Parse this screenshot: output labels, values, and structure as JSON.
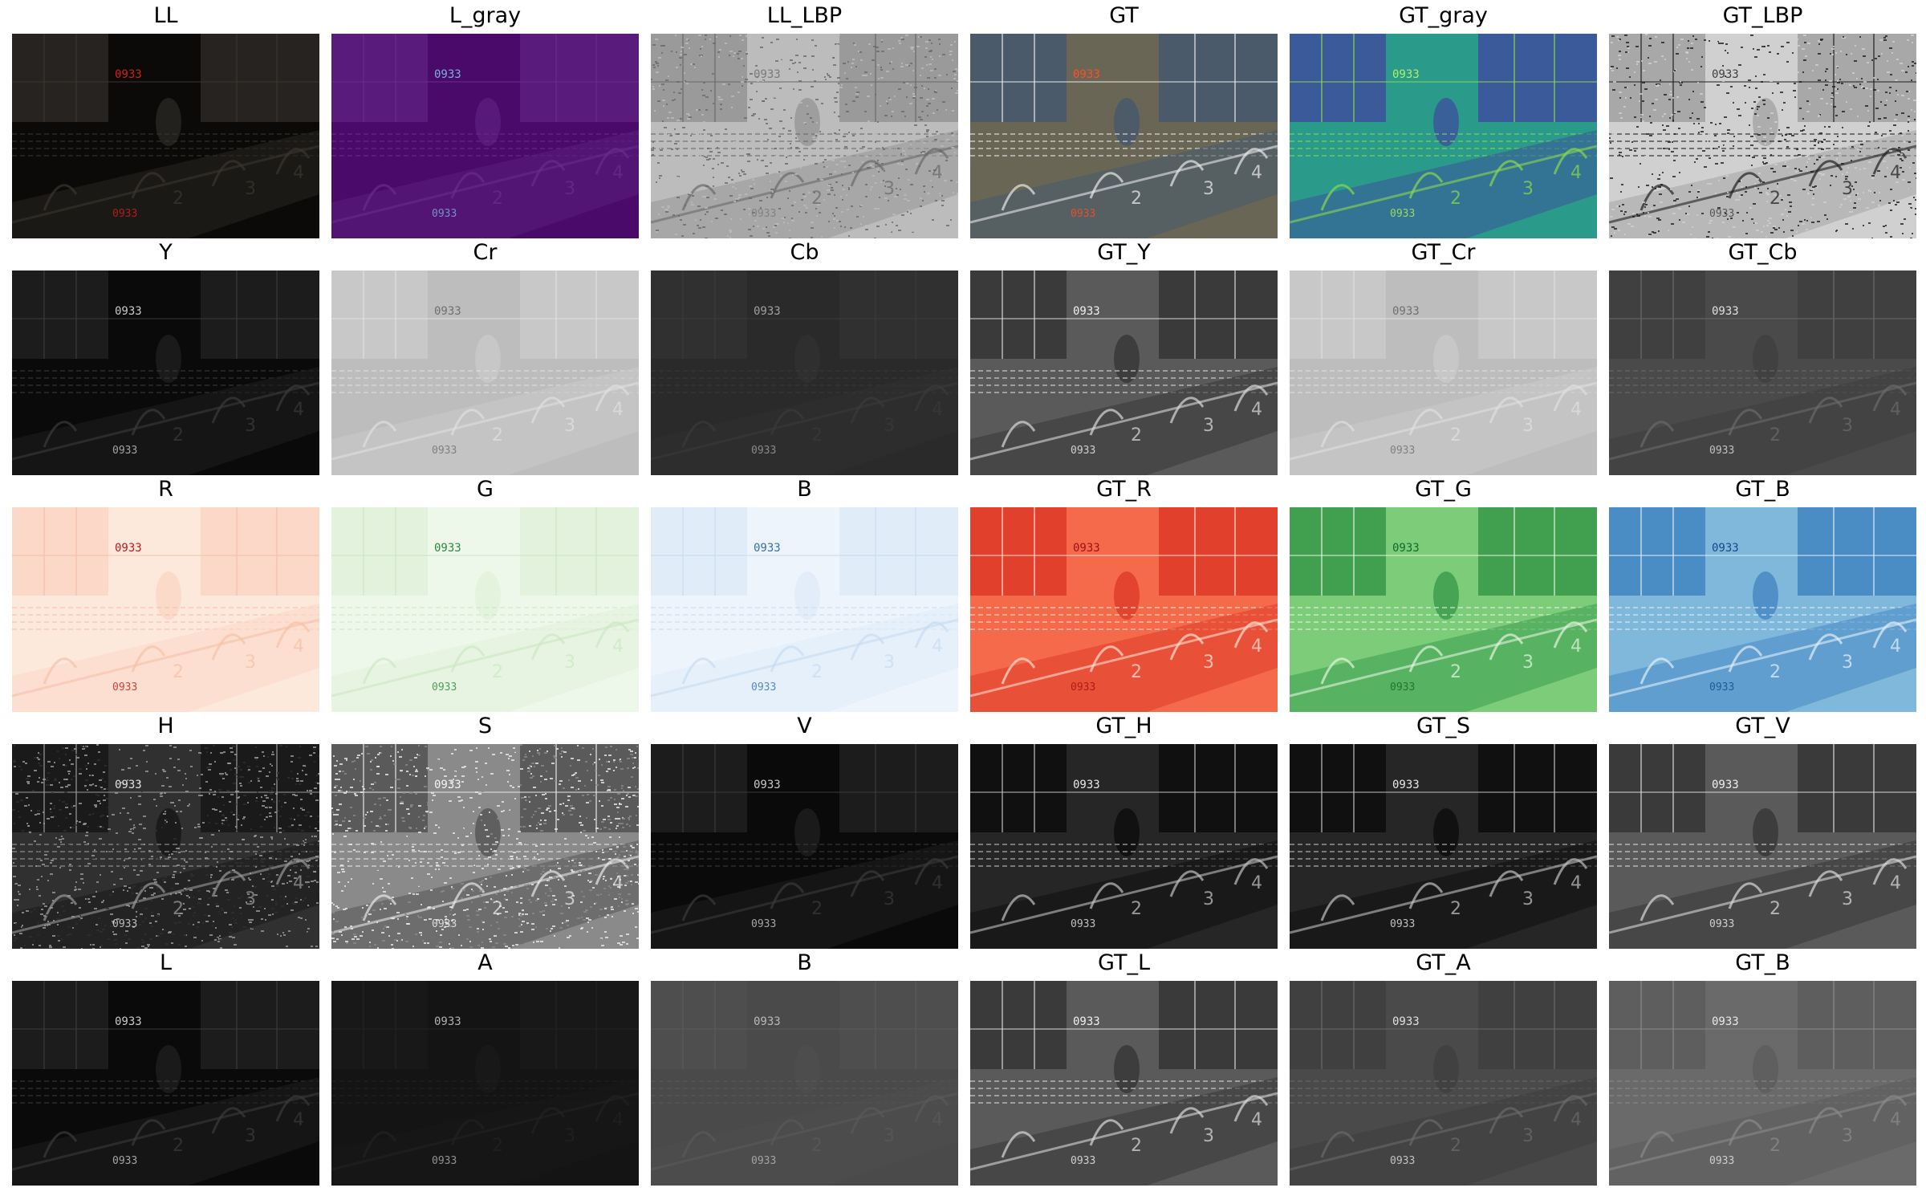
{
  "panels": [
    {
      "title": "LL",
      "style": "dark_color"
    },
    {
      "title": "L_gray",
      "style": "purple"
    },
    {
      "title": "LL_LBP",
      "style": "lbp_light"
    },
    {
      "title": "GT",
      "style": "gt_color"
    },
    {
      "title": "GT_gray",
      "style": "viridis"
    },
    {
      "title": "GT_LBP",
      "style": "lbp_edges"
    },
    {
      "title": "Y",
      "style": "dark_gray"
    },
    {
      "title": "Cr",
      "style": "light_gray"
    },
    {
      "title": "Cb",
      "style": "mid_dark_gray"
    },
    {
      "title": "GT_Y",
      "style": "gray_scene"
    },
    {
      "title": "GT_Cr",
      "style": "light_gray"
    },
    {
      "title": "GT_Cb",
      "style": "mid_gray"
    },
    {
      "title": "R",
      "style": "reds_light"
    },
    {
      "title": "G",
      "style": "greens_light"
    },
    {
      "title": "B",
      "style": "blues_light"
    },
    {
      "title": "GT_R",
      "style": "reds"
    },
    {
      "title": "GT_G",
      "style": "greens"
    },
    {
      "title": "GT_B",
      "style": "blues"
    },
    {
      "title": "H",
      "style": "noise_dark"
    },
    {
      "title": "S",
      "style": "noise_light"
    },
    {
      "title": "V",
      "style": "dark_gray"
    },
    {
      "title": "GT_H",
      "style": "gray_scene_dark"
    },
    {
      "title": "GT_S",
      "style": "gray_scene_dark"
    },
    {
      "title": "GT_V",
      "style": "gray_scene"
    },
    {
      "title": "L",
      "style": "dark_gray"
    },
    {
      "title": "A",
      "style": "dark_flat"
    },
    {
      "title": "B",
      "style": "mid_flat"
    },
    {
      "title": "GT_L",
      "style": "gray_scene"
    },
    {
      "title": "GT_A",
      "style": "mid_gray"
    },
    {
      "title": "GT_B",
      "style": "mid_gray_light"
    }
  ],
  "overlay": {
    "clock_text": "0933",
    "numbers": [
      "2",
      "3",
      "4"
    ]
  },
  "palettes": {
    "dark_color": {
      "bg": "#0c0a08",
      "fg": "#262320",
      "line": "#3a3530",
      "text": "#d02020"
    },
    "purple": {
      "bg": "#4a0a6a",
      "fg": "#5a1c7c",
      "line": "#6a2c8a",
      "text": "#7ab0d8"
    },
    "lbp_light": {
      "bg": "#bcbcbc",
      "fg": "#9a9a9a",
      "line": "#6a6a6a",
      "text": "#7a7a7a"
    },
    "gt_color": {
      "bg": "#6a6656",
      "fg": "#4a5a6a",
      "line": "#e8e8e8",
      "text": "#ff5020"
    },
    "viridis": {
      "bg": "#2a9a8a",
      "fg": "#3a5a9a",
      "line": "#8ad850",
      "text": "#b0f060"
    },
    "lbp_edges": {
      "bg": "#d0d0d0",
      "fg": "#a8a8a8",
      "line": "#202020",
      "text": "#404040"
    },
    "dark_gray": {
      "bg": "#0a0a0a",
      "fg": "#1c1c1c",
      "line": "#3a3a3a",
      "text": "#c8c8c8"
    },
    "light_gray": {
      "bg": "#bdbdbd",
      "fg": "#c8c8c8",
      "line": "#e0e0e0",
      "text": "#707070"
    },
    "mid_dark_gray": {
      "bg": "#2a2a2a",
      "fg": "#303030",
      "line": "#3a3a3a",
      "text": "#a0a0a0"
    },
    "gray_scene": {
      "bg": "#5a5a5a",
      "fg": "#3a3a3a",
      "line": "#d8d8d8",
      "text": "#f0f0f0"
    },
    "gray_scene_dark": {
      "bg": "#262626",
      "fg": "#101010",
      "line": "#c0c0c0",
      "text": "#e8e8e8"
    },
    "mid_gray": {
      "bg": "#4a4a4a",
      "fg": "#404040",
      "line": "#6a6a6a",
      "text": "#e0e0e0"
    },
    "reds_light": {
      "bg": "#fde8dc",
      "fg": "#fcd8c8",
      "line": "#f6c0a8",
      "text": "#c01818"
    },
    "greens_light": {
      "bg": "#eef8ea",
      "fg": "#e2f2dc",
      "line": "#cce8c4",
      "text": "#2a8a3a"
    },
    "blues_light": {
      "bg": "#eef4fc",
      "fg": "#e0ecf8",
      "line": "#c8dcf0",
      "text": "#3070b0"
    },
    "reds": {
      "bg": "#f66a4c",
      "fg": "#e0402c",
      "line": "#fde0d2",
      "text": "#a01010"
    },
    "greens": {
      "bg": "#7ccc7a",
      "fg": "#40a050",
      "line": "#e4f4de",
      "text": "#106a2a"
    },
    "blues": {
      "bg": "#80b8dc",
      "fg": "#4a8cc4",
      "line": "#e2eef8",
      "text": "#104a8a"
    },
    "noise_dark": {
      "bg": "#303030",
      "fg": "#1a1a1a",
      "line": "#9a9a9a",
      "text": "#e0e0e0"
    },
    "noise_light": {
      "bg": "#8a8a8a",
      "fg": "#5a5a5a",
      "line": "#e8e8e8",
      "text": "#f4f4f4"
    },
    "dark_flat": {
      "bg": "#141414",
      "fg": "#181818",
      "line": "#222222",
      "text": "#b0b0b0"
    },
    "mid_flat": {
      "bg": "#4a4a4a",
      "fg": "#4e4e4e",
      "line": "#5a5a5a",
      "text": "#b8b8b8"
    },
    "mid_gray_light": {
      "bg": "#6a6a6a",
      "fg": "#5e5e5e",
      "line": "#8a8a8a",
      "text": "#e8e8e8"
    }
  }
}
